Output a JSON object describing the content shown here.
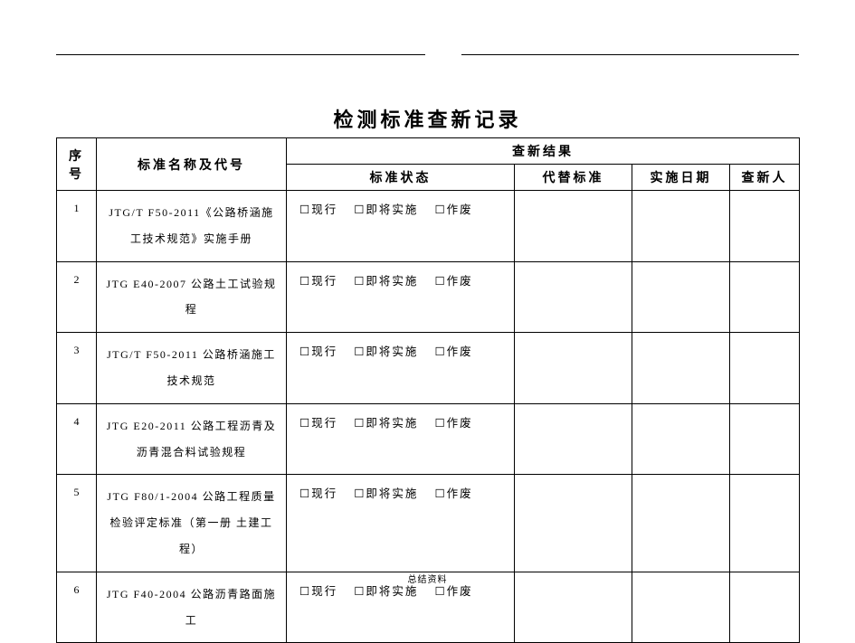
{
  "title": "检测标准查新记录",
  "footer": "总结资料",
  "columns": {
    "seq": "序号",
    "name": "标准名称及代号",
    "result_group": "查新结果",
    "state": "标准状态",
    "replace": "代替标准",
    "date": "实施日期",
    "person": "查新人"
  },
  "state_options": {
    "a": "☐现行",
    "b": "☐即将实施",
    "c": "☐作废"
  },
  "rows": [
    {
      "seq": "1",
      "name": "JTG/T F50-2011《公路桥涵施工技术规范》实施手册"
    },
    {
      "seq": "2",
      "name": "JTG E40-2007 公路土工试验规程"
    },
    {
      "seq": "3",
      "name": "JTG/T F50-2011 公路桥涵施工技术规范"
    },
    {
      "seq": "4",
      "name": "JTG E20-2011 公路工程沥青及沥青混合料试验规程"
    },
    {
      "seq": "5",
      "name": "JTG F80/1-2004 公路工程质量检验评定标准（第一册 土建工程）"
    },
    {
      "seq": "6",
      "name": "JTG F40-2004 公路沥青路面施工"
    }
  ]
}
